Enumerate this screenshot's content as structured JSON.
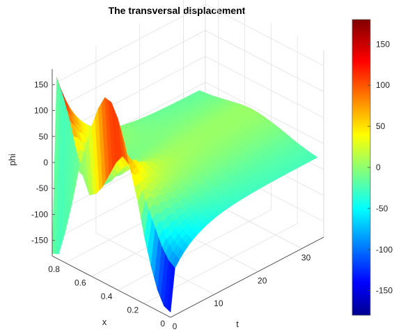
{
  "chart_data": {
    "type": "surface",
    "title": "The transversal displacement",
    "xlabel": "x",
    "ylabel": "t",
    "zlabel": "phi",
    "x_ticks": [
      "0",
      "0.2",
      "0.4",
      "0.6",
      "0.8"
    ],
    "t_ticks": [
      "0",
      "10",
      "20",
      "30"
    ],
    "z_ticks": [
      "-150",
      "-100",
      "-50",
      "0",
      "50",
      "100",
      "150"
    ],
    "colorbar_ticks": [
      "-150",
      "-100",
      "-50",
      "0",
      "50",
      "100",
      "150"
    ],
    "xlim": [
      0,
      0.9
    ],
    "tlim": [
      0,
      35
    ],
    "zlim": [
      -180,
      180
    ],
    "clim": [
      -180,
      180
    ],
    "colormap": "jet",
    "grid": true,
    "surface_samples": {
      "t": [
        0,
        1,
        2,
        3,
        4,
        5,
        6,
        7,
        8,
        9,
        10,
        11,
        12,
        13,
        14,
        15,
        16,
        17,
        18,
        19,
        20,
        21,
        22,
        23,
        24,
        25,
        26,
        27,
        28,
        29,
        30,
        31,
        32,
        33
      ],
      "x": [
        0,
        0.05,
        0.1,
        0.15,
        0.2,
        0.25,
        0.3,
        0.35,
        0.4,
        0.45,
        0.5,
        0.55,
        0.6,
        0.65,
        0.7,
        0.75,
        0.8,
        0.85,
        0.9
      ],
      "phi_t0": [
        -170,
        -165,
        -140,
        -100,
        -50,
        10,
        60,
        110,
        150,
        175,
        178,
        150,
        110,
        60,
        10,
        -60,
        -120,
        -170,
        -175
      ],
      "phi_t1": [
        -90,
        -80,
        -60,
        -30,
        0,
        30,
        55,
        70,
        80,
        60,
        30,
        0,
        -20,
        -30,
        0,
        40,
        90,
        130,
        160
      ],
      "phi_t33": [
        -20,
        -18,
        -15,
        -12,
        -8,
        -4,
        0,
        3,
        6,
        8,
        9,
        8,
        6,
        3,
        0,
        -3,
        -6,
        -8,
        -10
      ]
    }
  }
}
